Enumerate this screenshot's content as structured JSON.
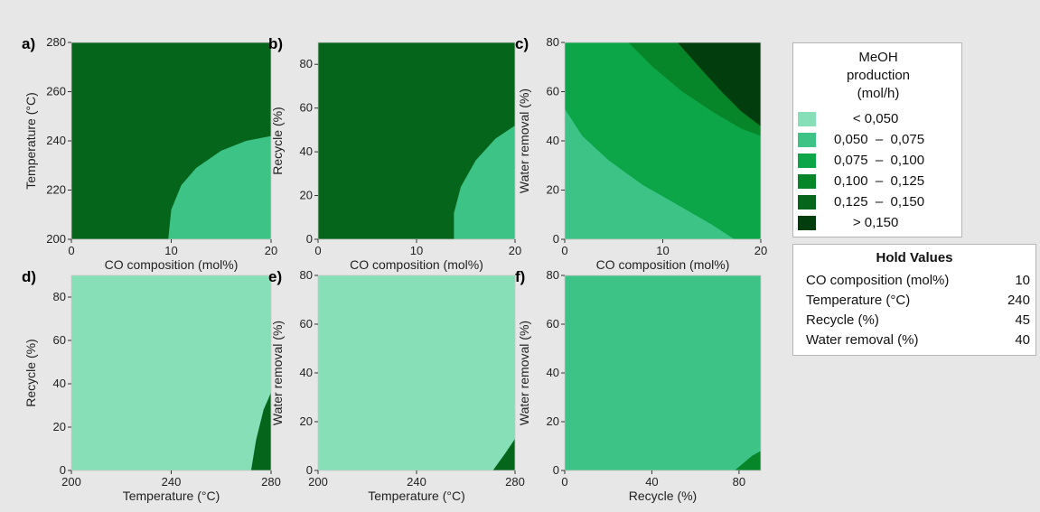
{
  "colors": {
    "bin0": "#86dfb6",
    "bin1": "#3dc386",
    "bin2": "#0ca648",
    "bin3": "#078529",
    "bin4": "#04651b",
    "bin5": "#023d0e",
    "background": "#e7e7e7"
  },
  "legend": {
    "title_lines": [
      "MeOH",
      "production",
      "(mol/h)"
    ],
    "items": [
      {
        "label": "     < 0,050",
        "color": "#86dfb6"
      },
      {
        "label": "0,050  –  0,075",
        "color": "#3dc386"
      },
      {
        "label": "0,075  –  0,100",
        "color": "#0ca648"
      },
      {
        "label": "0,100  –  0,125",
        "color": "#078529"
      },
      {
        "label": "0,125  –  0,150",
        "color": "#04651b"
      },
      {
        "label": "     > 0,150",
        "color": "#023d0e"
      }
    ]
  },
  "hold_values": {
    "title": "Hold Values",
    "rows": [
      {
        "name": "CO composition (mol%)",
        "value": "10"
      },
      {
        "name": "Temperature (°C)",
        "value": "240"
      },
      {
        "name": "Recycle (%)",
        "value": "45"
      },
      {
        "name": "Water removal (%)",
        "value": "40"
      }
    ]
  },
  "chart_data": [
    {
      "type": "heatmap",
      "panel": "a)",
      "xlabel": "CO composition (mol%)",
      "ylabel": "Temperature (°C)",
      "xlim": [
        0,
        20
      ],
      "ylim": [
        200,
        280
      ],
      "xticks": [
        "0",
        "10",
        "20"
      ],
      "yticks": [
        "200",
        "220",
        "240",
        "260",
        "280"
      ],
      "regions": [
        {
          "bin": 2,
          "boundary": [
            [
              0.0,
              274
            ],
            [
              2.5,
              280
            ]
          ]
        },
        {
          "bin": 3,
          "boundary": [
            [
              0.0,
              200
            ],
            [
              0.3,
              214
            ],
            [
              1.0,
              226
            ],
            [
              2.4,
              237
            ],
            [
              4.5,
              246
            ],
            [
              7.5,
              254
            ],
            [
              11,
              260
            ],
            [
              15,
              264
            ],
            [
              20,
              267
            ]
          ]
        },
        {
          "bin": 4,
          "boundary": [
            [
              9.7,
              200
            ],
            [
              10.0,
              212
            ],
            [
              11.0,
              222
            ],
            [
              12.5,
              229
            ],
            [
              15,
              236
            ],
            [
              17.5,
              240
            ],
            [
              20,
              242
            ]
          ]
        }
      ]
    },
    {
      "type": "heatmap",
      "panel": "b)",
      "xlabel": "CO composition (mol%)",
      "ylabel": "Recycle (%)",
      "xlim": [
        0,
        20
      ],
      "ylim": [
        0,
        90
      ],
      "xticks": [
        "0",
        "10",
        "20"
      ],
      "yticks": [
        "0",
        "20",
        "40",
        "60",
        "80"
      ],
      "regions": [
        {
          "bin": 2,
          "boundary": [
            [
              0.0,
              90
            ],
            [
              0.2,
              90
            ]
          ]
        },
        {
          "bin": 3,
          "boundary": [
            [
              5.3,
              0
            ],
            [
              4.0,
              15
            ],
            [
              3.2,
              30
            ],
            [
              3.0,
              45
            ],
            [
              3.3,
              58
            ],
            [
              4.5,
              70
            ],
            [
              6.5,
              81
            ],
            [
              9.0,
              88
            ],
            [
              10.5,
              90
            ]
          ]
        },
        {
          "bin": 4,
          "boundary": [
            [
              13.8,
              0
            ],
            [
              13.8,
              12
            ],
            [
              14.5,
              24
            ],
            [
              16,
              36
            ],
            [
              18,
              46
            ],
            [
              20,
              52
            ]
          ]
        }
      ]
    },
    {
      "type": "heatmap",
      "panel": "c)",
      "xlabel": "CO composition (mol%)",
      "ylabel": "Water removal (%)",
      "xlim": [
        0,
        20
      ],
      "ylim": [
        0,
        80
      ],
      "xticks": [
        "0",
        "10",
        "20"
      ],
      "yticks": [
        "0",
        "20",
        "40",
        "60",
        "80"
      ],
      "regions": [
        {
          "bin": 1,
          "boundary": [
            [
              0.0,
              10
            ],
            [
              0.8,
              6
            ],
            [
              1.6,
              3
            ],
            [
              2.4,
              0
            ]
          ]
        },
        {
          "bin": 2,
          "boundary": [
            [
              0.0,
              53
            ],
            [
              1.8,
              42
            ],
            [
              4.5,
              32
            ],
            [
              8,
              22
            ],
            [
              11.5,
              14
            ],
            [
              15,
              6
            ],
            [
              17.3,
              0
            ]
          ]
        },
        {
          "bin": 3,
          "boundary": [
            [
              6.5,
              80
            ],
            [
              9,
              70
            ],
            [
              12,
              60
            ],
            [
              15,
              52
            ],
            [
              18,
              45
            ],
            [
              20,
              42
            ]
          ]
        },
        {
          "bin": 4,
          "boundary": [
            [
              11.5,
              80
            ],
            [
              13.5,
              71
            ],
            [
              16,
              60
            ],
            [
              18,
              52
            ],
            [
              20,
              46
            ]
          ]
        },
        {
          "bin": 5,
          "boundary": [
            [
              11.5,
              80
            ],
            [
              13.5,
              71
            ],
            [
              16,
              60
            ],
            [
              18,
              52
            ],
            [
              20,
              46
            ]
          ]
        }
      ]
    },
    {
      "type": "heatmap",
      "panel": "d)",
      "xlabel": "Temperature (°C)",
      "ylabel": "Recycle (%)",
      "xlim": [
        200,
        280
      ],
      "ylim": [
        0,
        90
      ],
      "xticks": [
        "200",
        "240",
        "280"
      ],
      "yticks": [
        "0",
        "20",
        "40",
        "60",
        "80"
      ],
      "regions": [
        {
          "bin": 2,
          "boundary": [
            [
              200,
              70
            ],
            [
              215,
              76
            ],
            [
              230,
              83
            ],
            [
              242,
              90
            ]
          ]
        },
        {
          "bin": 3,
          "boundary": [
            [
              200,
              46
            ],
            [
              210,
              46
            ],
            [
              220,
              43
            ],
            [
              229,
              35
            ],
            [
              232,
              20
            ],
            [
              232,
              0
            ]
          ]
        },
        {
          "bin": 4,
          "boundary": [
            [
              200,
              14
            ],
            [
              204,
              9
            ],
            [
              208,
              4
            ],
            [
              212,
              0
            ]
          ]
        },
        {
          "bin": 1,
          "boundary": [
            [
              249,
              0
            ],
            [
              250,
              20
            ],
            [
              254,
              40
            ],
            [
              261,
              58
            ],
            [
              269,
              72
            ],
            [
              277,
              83
            ],
            [
              280,
              85
            ]
          ]
        },
        {
          "bin": 0,
          "boundary": [
            [
              272,
              0
            ],
            [
              274,
              14
            ],
            [
              277,
              28
            ],
            [
              280,
              36
            ]
          ]
        }
      ]
    },
    {
      "type": "heatmap",
      "panel": "e)",
      "xlabel": "Temperature (°C)",
      "ylabel": "Water removal (%)",
      "xlim": [
        200,
        280
      ],
      "ylim": [
        0,
        80
      ],
      "xticks": [
        "200",
        "240",
        "280"
      ],
      "yticks": [
        "0",
        "20",
        "40",
        "60",
        "80"
      ],
      "regions": [
        {
          "bin": 3,
          "boundary": [
            [
              200,
              22
            ],
            [
              210,
              33
            ],
            [
              222,
              45
            ],
            [
              235,
              56
            ],
            [
              248,
              66
            ],
            [
              262,
              74
            ],
            [
              275,
              80
            ]
          ]
        },
        {
          "bin": 2,
          "boundary": [
            [
              230,
              0
            ],
            [
              240,
              10
            ],
            [
              250,
              19
            ],
            [
              262,
              32
            ],
            [
              272,
              44
            ],
            [
              280,
              52
            ]
          ]
        },
        {
          "bin": 1,
          "boundary": [
            [
              255,
              0
            ],
            [
              262,
              8
            ],
            [
              270,
              18
            ],
            [
              280,
              31
            ]
          ]
        },
        {
          "bin": 0,
          "boundary": [
            [
              271,
              0
            ],
            [
              276,
              7
            ],
            [
              280,
              13
            ]
          ]
        }
      ]
    },
    {
      "type": "heatmap",
      "panel": "f)",
      "xlabel": "Recycle (%)",
      "ylabel": "Water removal (%)",
      "xlim": [
        0,
        90
      ],
      "ylim": [
        0,
        80
      ],
      "xticks": [
        "0",
        "40",
        "80"
      ],
      "yticks": [
        "0",
        "20",
        "40",
        "60",
        "80"
      ],
      "regions": [
        {
          "bin": 4,
          "boundary": [
            [
              0,
              74
            ],
            [
              10,
              66
            ],
            [
              22,
              61
            ],
            [
              34,
              59
            ],
            [
              46,
              60
            ],
            [
              58,
              64
            ],
            [
              70,
              70
            ],
            [
              82,
              77
            ],
            [
              86,
              80
            ]
          ]
        },
        {
          "bin": 2,
          "boundary": [
            [
              0,
              9
            ],
            [
              15,
              9
            ],
            [
              30,
              11
            ],
            [
              45,
              14
            ],
            [
              60,
              19
            ],
            [
              75,
              27
            ],
            [
              85,
              35
            ],
            [
              90,
              40
            ]
          ]
        },
        {
          "bin": 1,
          "boundary": [
            [
              78,
              0
            ],
            [
              82,
              3
            ],
            [
              86,
              6
            ],
            [
              90,
              8
            ]
          ]
        }
      ]
    }
  ]
}
